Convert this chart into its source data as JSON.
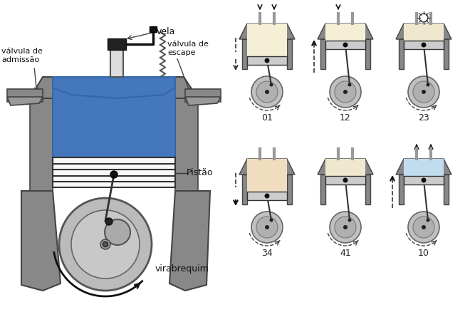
{
  "bg_color": "#ffffff",
  "fig_w": 6.6,
  "fig_h": 4.38,
  "dpi": 100,
  "labels": {
    "vela": "vela",
    "valvula_admissao": "válvula de\nadmissão",
    "valvula_escape": "válvula de\nescape",
    "pistao": "Pistão",
    "virabrequim": "virabrequim"
  },
  "mini_labels": [
    "01",
    "12",
    "23",
    "34",
    "41",
    "10"
  ],
  "colors": {
    "gray_dark": "#666666",
    "gray_mid": "#888888",
    "gray_light": "#bbbbbb",
    "blue_fill": "#4477bb",
    "light_blue_fill": "#aaccee",
    "piston_white": "#f0f0f0",
    "piston_gray": "#cccccc",
    "cream1": "#f5f0d5",
    "cream2": "#f0e8ce",
    "peach": "#f0ddc0",
    "light_blue_mini": "#c0ddf0",
    "wheel_gray": "#c0c0c0",
    "wheel_inner": "#b0b0b0"
  }
}
